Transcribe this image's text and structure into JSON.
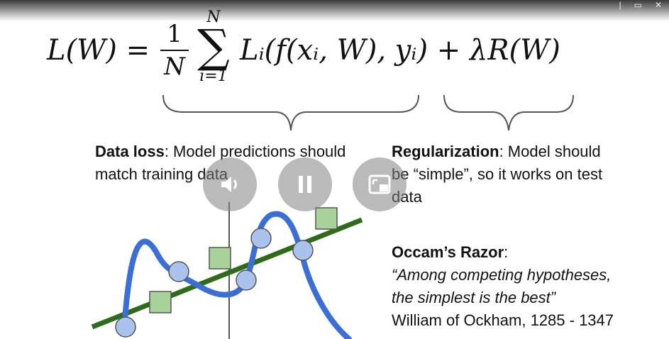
{
  "top_bar": {
    "controls": [
      "|",
      "▭",
      "✕"
    ]
  },
  "formula": {
    "lhs": "L(W) =",
    "frac_num": "1",
    "frac_den": "N",
    "sum_upper": "N",
    "sum_symbol": "∑",
    "sum_lower": "i=1",
    "rhs": "Lᵢ(f(xᵢ, W), yᵢ) + λR(W)"
  },
  "data_loss": {
    "title": "Data loss",
    "text": ": Model predictions should match training data"
  },
  "regularization": {
    "title": "Regularization",
    "text": ": Model should be “simple”, so it works on test data"
  },
  "occam": {
    "title": "Occam’s Razor",
    "colon": ":",
    "quote_line1": "“Among competing hypotheses,",
    "quote_line2": "the simplest is the best”",
    "attribution": "William of Ockham, 1285 - 1347"
  },
  "colors": {
    "curve": "#3b6fd6",
    "line": "#2e6b1a",
    "circle_fill": "#a9c3ec",
    "square_fill": "#a9d39a"
  },
  "player_controls": {
    "volume": "volume-icon",
    "pause": "pause-icon",
    "pip": "picture-in-picture-icon"
  }
}
